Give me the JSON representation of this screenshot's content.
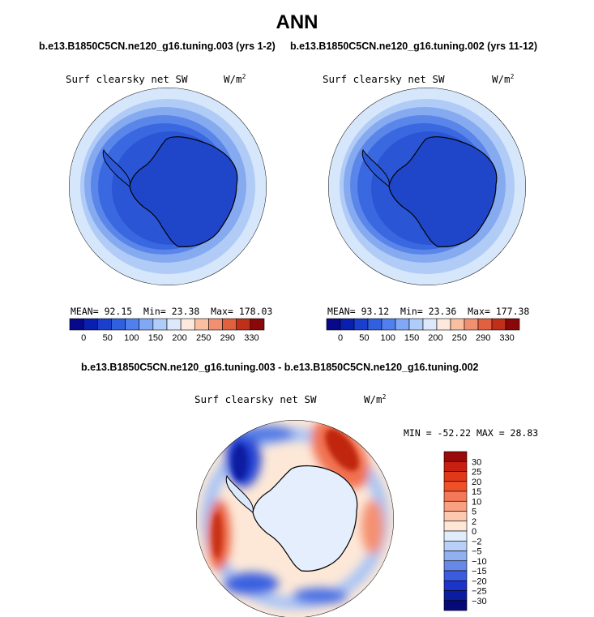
{
  "title": "ANN",
  "panels": [
    {
      "case": "b.e13.B1850C5CN.ne120_g16.tuning.003 (yrs 1-2)",
      "variable": "Surf clearsky net SW",
      "units": "W/m",
      "units_sup": "2",
      "mean_label": "MEAN=",
      "mean": "92.15",
      "min_label": "Min=",
      "min": "23.38",
      "max_label": "Max=",
      "max": "178.03"
    },
    {
      "case": "b.e13.B1850C5CN.ne120_g16.tuning.002 (yrs 11-12)",
      "variable": "Surf clearsky net SW",
      "units": "W/m",
      "units_sup": "2",
      "mean_label": "MEAN=",
      "mean": "93.12",
      "min_label": "Min=",
      "min": "23.36",
      "max_label": "Max=",
      "max": "177.38"
    }
  ],
  "diff": {
    "case": "b.e13.B1850C5CN.ne120_g16.tuning.003 - b.e13.B1850C5CN.ne120_g16.tuning.002",
    "variable": "Surf clearsky net SW",
    "units": "W/m",
    "units_sup": "2",
    "stats": "MIN = -52.22  MAX =  28.83"
  },
  "abs_colorbar": {
    "labels": [
      "0",
      "50",
      "100",
      "150",
      "200",
      "250",
      "290",
      "330"
    ],
    "colors": [
      "#08088a",
      "#0a1fb0",
      "#1a3fcc",
      "#3060e0",
      "#5080ee",
      "#80a8f4",
      "#b0ccf8",
      "#dce8fc",
      "#fce8dc",
      "#f8c0a0",
      "#f09070",
      "#e06040",
      "#c03018",
      "#8a0808"
    ]
  },
  "diff_colorbar": {
    "labels": [
      "30",
      "25",
      "20",
      "15",
      "10",
      "5",
      "2",
      "0",
      "−2",
      "−5",
      "−10",
      "−15",
      "−20",
      "−25",
      "−30"
    ],
    "colors": [
      "#9a0a0a",
      "#c82010",
      "#e03818",
      "#f05028",
      "#f47858",
      "#f8a080",
      "#fcc8b0",
      "#fde8d8",
      "#e0ecfc",
      "#b8d0f8",
      "#90b0f0",
      "#6888e8",
      "#3c5ce0",
      "#1c34c8",
      "#0c1ca0",
      "#060a78"
    ]
  }
}
